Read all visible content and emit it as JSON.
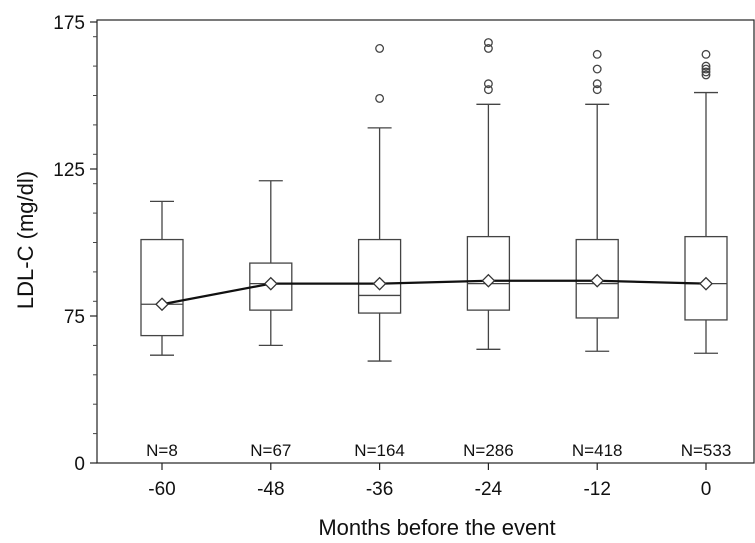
{
  "chart_data": {
    "type": "box",
    "title": "",
    "xlabel": "Months before the event",
    "ylabel": "LDL-C (mg/dl)",
    "x_categories": [
      "-60",
      "-48",
      "-36",
      "-24",
      "-12",
      "0"
    ],
    "yticks": [
      "0",
      "75",
      "125",
      "175"
    ],
    "ylim": [
      0,
      175
    ],
    "y_break": [
      0,
      75
    ],
    "y_minor_step": 10,
    "grid": false,
    "legend": "none",
    "line_color": "#111111",
    "box_color": "#444444",
    "boxes": [
      {
        "x": "-60",
        "n_label": "N=8",
        "whisker_low": 55,
        "q1": 65,
        "median": 79,
        "q3": 101,
        "whisker_high": 114,
        "mean": 79,
        "outliers": []
      },
      {
        "x": "-48",
        "n_label": "N=67",
        "whisker_low": 60,
        "q1": 77,
        "median": 86,
        "q3": 93,
        "whisker_high": 121,
        "mean": 86,
        "outliers": []
      },
      {
        "x": "-36",
        "n_label": "N=164",
        "whisker_low": 52,
        "q1": 76,
        "median": 82,
        "q3": 101,
        "whisker_high": 139,
        "mean": 86,
        "outliers": [
          149,
          166
        ]
      },
      {
        "x": "-24",
        "n_label": "N=286",
        "whisker_low": 58,
        "q1": 77,
        "median": 86,
        "q3": 102,
        "whisker_high": 147,
        "mean": 87,
        "outliers": [
          152,
          154,
          166,
          168
        ]
      },
      {
        "x": "-12",
        "n_label": "N=418",
        "whisker_low": 57,
        "q1": 74,
        "median": 86,
        "q3": 101,
        "whisker_high": 147,
        "mean": 87,
        "outliers": [
          152,
          154,
          159,
          164
        ]
      },
      {
        "x": "0",
        "n_label": "N=533",
        "whisker_low": 56,
        "q1": 73,
        "median": 86,
        "q3": 102,
        "whisker_high": 151,
        "mean": 86,
        "outliers": [
          157,
          158,
          159,
          160,
          164
        ]
      }
    ],
    "mean_line": [
      79,
      86,
      86,
      87,
      87,
      86
    ]
  }
}
